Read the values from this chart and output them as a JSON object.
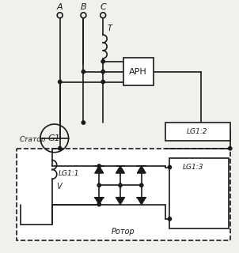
{
  "bg_color": "#f0f0ec",
  "line_color": "#1a1a1a",
  "stator_label": "Статор",
  "rotor_label": "Ротор",
  "g1_label": "G1",
  "arh_label": "АРН",
  "lg1_1_label": "LG1:1",
  "lg1_2_label": "LG1:2",
  "lg1_3_label": "LG1:3",
  "v_label": "V",
  "t_label": "T",
  "A_label": "A",
  "B_label": "B",
  "C_label": "C"
}
